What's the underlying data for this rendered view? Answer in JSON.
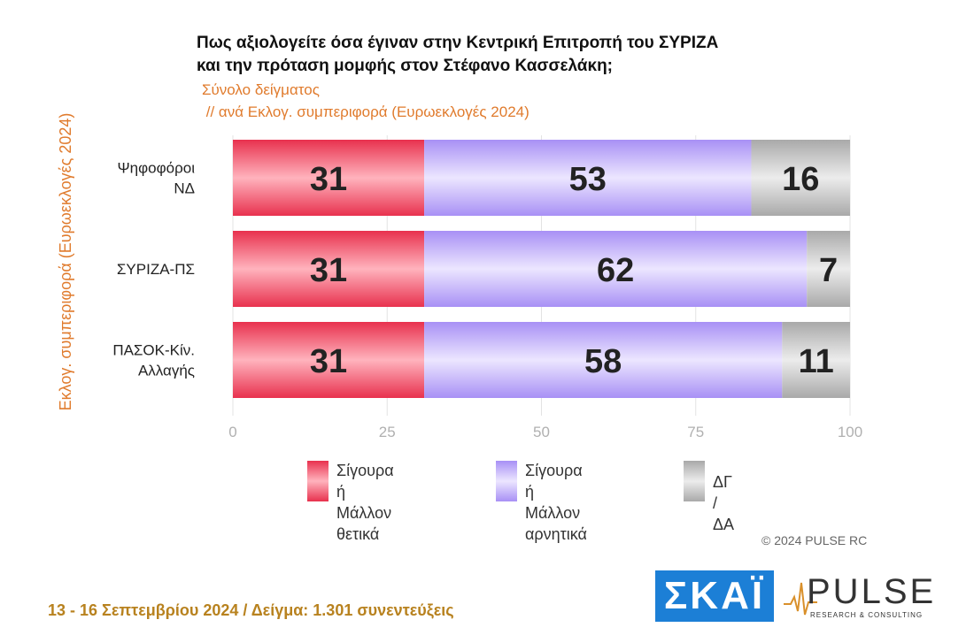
{
  "title_line1": "Πως αξιολογείτε όσα έγιναν στην Κεντρική Επιτροπή του ΣΥΡΙΖΑ",
  "title_line2": "και την πρόταση μομφής στον Στέφανο Κασσελάκη;",
  "subtitle_line1": "Σύνολο δείγματος",
  "subtitle_line2": " // ανά Εκλογ. συμπεριφορά (Ευρωεκλογές 2024)",
  "side_label": "Εκλογ. συμπεριφορά (Ευρωεκλογές 2024)",
  "watermark": "PULSE",
  "copyright": "© 2024 PULSE RC",
  "footer": "13 - 16 Σεπτεμβρίου 2024  /  Δείγμα:  1.301 συνεντεύξεις",
  "logos": {
    "skai": "ΣΚΑΪ",
    "pulse": "PULSE",
    "pulse_sub": "RESEARCH & CONSULTING"
  },
  "colors": {
    "positive": "#f04a63",
    "negative": "#b7a6f7",
    "dkna": "#b5b5b5",
    "title": "#111111",
    "accent": "#e07b2d",
    "footer": "#b8821f"
  },
  "chart_data": {
    "type": "bar",
    "orientation": "horizontal",
    "stacked": true,
    "categories": [
      "Ψηφοφόροι\nΝΔ",
      "ΣΥΡΙΖΑ-ΠΣ",
      "ΠΑΣΟΚ-Κίν.\nΑλλαγής"
    ],
    "series": [
      {
        "name": "Σίγουρα ή Μάλλον\nθετικά",
        "values": [
          31,
          31,
          31
        ]
      },
      {
        "name": "Σίγουρα ή Μάλλον\nαρνητικά",
        "values": [
          53,
          62,
          58
        ]
      },
      {
        "name": "ΔΓ / ΔΑ",
        "values": [
          16,
          7,
          11
        ]
      }
    ],
    "xlim": [
      0,
      100
    ],
    "x_ticks": [
      0,
      25,
      50,
      75,
      100
    ],
    "legend_position": "bottom"
  }
}
